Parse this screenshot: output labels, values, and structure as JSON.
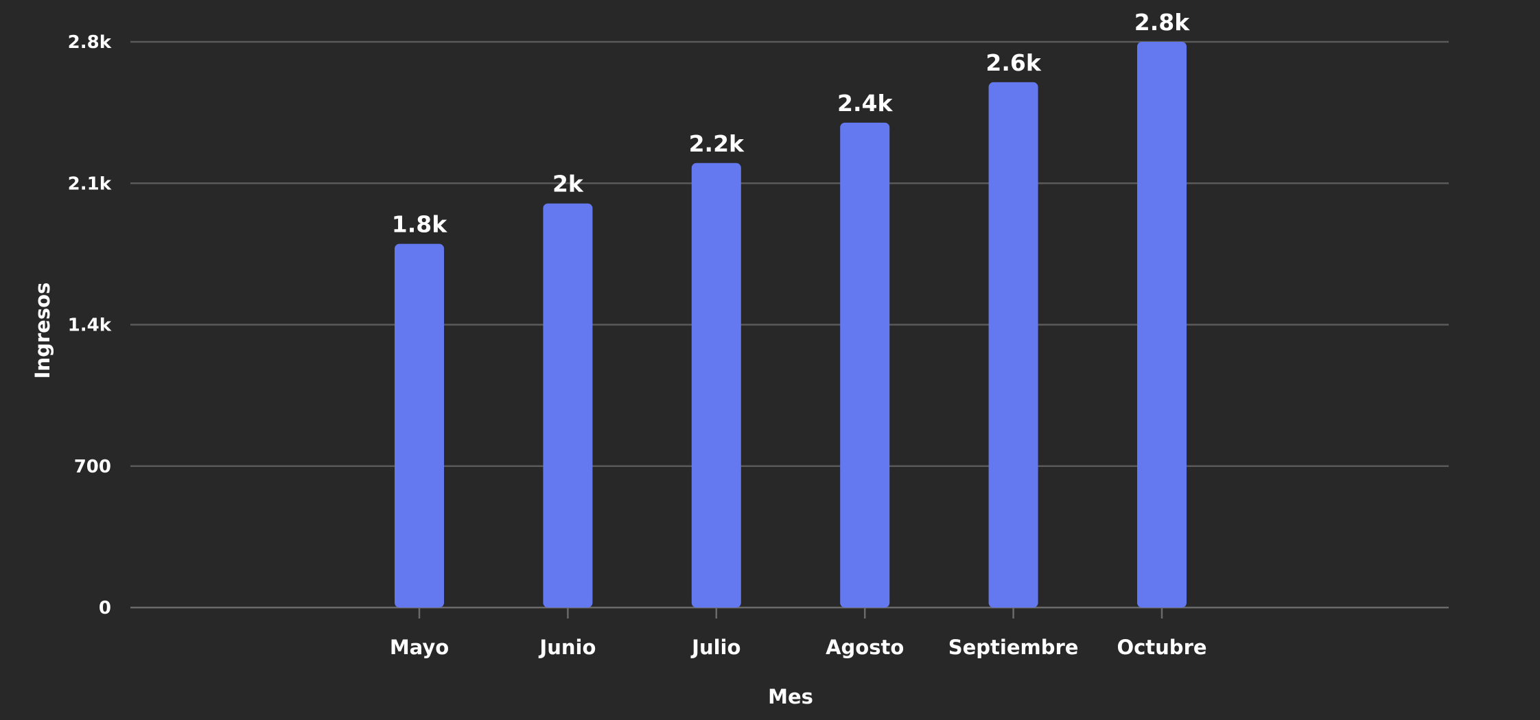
{
  "chart_data": {
    "type": "bar",
    "title": "",
    "xlabel": "Mes",
    "ylabel": "Ingresos",
    "categories": [
      "Mayo",
      "Junio",
      "Julio",
      "Agosto",
      "Septiembre",
      "Octubre"
    ],
    "values": [
      1800,
      2000,
      2200,
      2400,
      2600,
      2800
    ],
    "data_labels": [
      "1.8k",
      "2k",
      "2.2k",
      "2.4k",
      "2.6k",
      "2.8k"
    ],
    "ylim": [
      0,
      2800
    ],
    "yticks": [
      0,
      700,
      1400,
      2100,
      2800
    ],
    "ytick_labels": [
      "0",
      "700",
      "1.4k",
      "2.1k",
      "2.8k"
    ],
    "grid": true,
    "bar_color": "#6479f0",
    "background_color": "#282828",
    "text_color": "#ffffff"
  }
}
